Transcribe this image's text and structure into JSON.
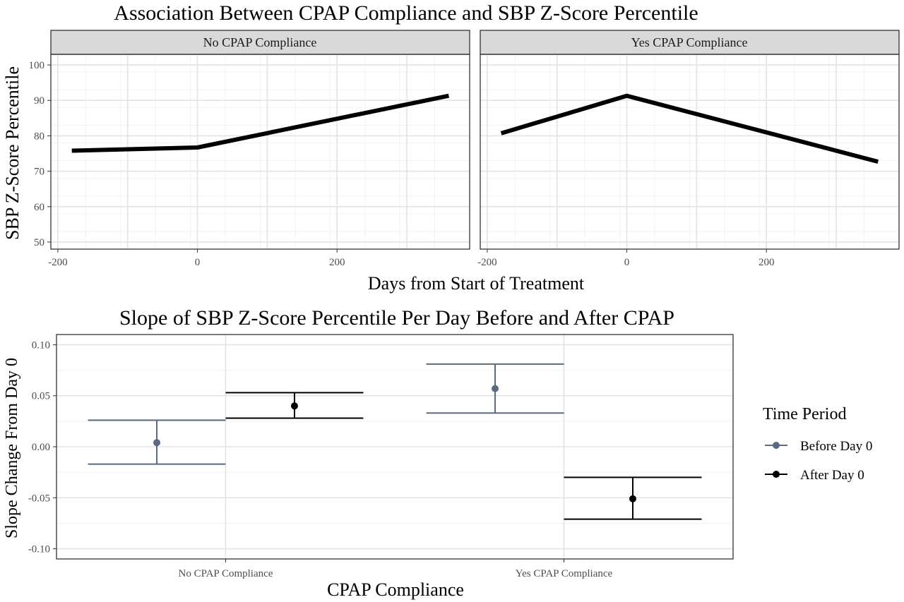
{
  "chart_data": [
    {
      "type": "line",
      "title": "Association Between CPAP Compliance and SBP Z-Score Percentile",
      "xlabel": "Days from Start of Treatment",
      "ylabel": "SBP Z-Score Percentile",
      "ylim": [
        48,
        103
      ],
      "yticks": [
        50,
        60,
        70,
        80,
        90,
        100
      ],
      "grid": true,
      "panels": [
        {
          "name": "No CPAP Compliance",
          "xlim": [
            -210,
            390
          ],
          "xticks": [
            -200,
            0,
            200
          ],
          "xtick_labels": [
            "-200",
            "0",
            "200"
          ],
          "x": [
            -180,
            0,
            360
          ],
          "y": [
            75.8,
            76.7,
            91.3
          ]
        },
        {
          "name": "Yes CPAP Compliance",
          "xlim": [
            -210,
            390
          ],
          "xticks": [
            -200,
            0,
            200
          ],
          "xtick_labels": [
            "-200",
            "0",
            "200"
          ],
          "x": [
            -180,
            0,
            360
          ],
          "y": [
            80.7,
            91.3,
            72.7
          ]
        }
      ]
    },
    {
      "type": "errorbar",
      "title": "Slope of SBP Z-Score Percentile Per Day Before and After CPAP",
      "xlabel": "CPAP Compliance",
      "ylabel": "Slope Change From Day 0",
      "categories": [
        "No CPAP Compliance",
        "Yes CPAP Compliance"
      ],
      "ylim": [
        -0.11,
        0.11
      ],
      "yticks": [
        -0.1,
        -0.05,
        0.0,
        0.05,
        0.1
      ],
      "ytick_labels": [
        "-0.10",
        "-0.05",
        "0.00",
        "0.05",
        "0.10"
      ],
      "grid": true,
      "legend": {
        "title": "Time Period",
        "position": "right"
      },
      "series": [
        {
          "name": "Before Day 0",
          "color": "#5b6a80",
          "values": [
            0.004,
            0.057
          ],
          "lower": [
            -0.017,
            0.033
          ],
          "upper": [
            0.026,
            0.081
          ]
        },
        {
          "name": "After Day 0",
          "color": "#000000",
          "values": [
            0.04,
            -0.051
          ],
          "lower": [
            0.028,
            -0.071
          ],
          "upper": [
            0.053,
            -0.03
          ]
        }
      ]
    }
  ]
}
